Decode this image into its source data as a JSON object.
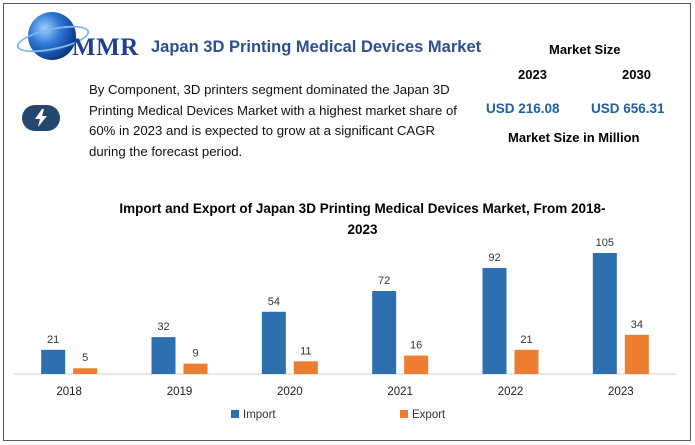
{
  "header": {
    "logo_text": "MMR",
    "title": "Japan 3D Printing Medical Devices Market"
  },
  "market_size": {
    "header": "Market Size",
    "year_start": "2023",
    "year_end": "2030",
    "value_start": "USD 216.08",
    "value_end": "USD 656.31",
    "footer": "Market Size in Million"
  },
  "description": {
    "icon": "lightning-bolt-icon",
    "text": "By Component, 3D printers segment dominated the Japan 3D Printing Medical Devices Market with a highest market share of 60% in 2023 and is expected to grow at a significant CAGR during the forecast period."
  },
  "colors": {
    "import": "#2e6fb0",
    "export": "#ed7d31",
    "title_blue": "#2e4e8e",
    "value_blue": "#1f5fa6"
  },
  "chart_data": {
    "type": "bar",
    "title": "Import and Export of Japan 3D Printing Medical Devices Market, From 2018-2023",
    "title_lines": [
      "Import and Export of Japan 3D Printing Medical Devices Market, From 2018-",
      "2023"
    ],
    "categories": [
      "2018",
      "2019",
      "2020",
      "2021",
      "2022",
      "2023"
    ],
    "series": [
      {
        "name": "Import",
        "values": [
          21,
          32,
          54,
          72,
          92,
          105
        ]
      },
      {
        "name": "Export",
        "values": [
          5,
          9,
          11,
          16,
          21,
          34
        ]
      }
    ],
    "ylim": [
      0,
      105
    ],
    "grid": false,
    "legend": "bottom"
  }
}
